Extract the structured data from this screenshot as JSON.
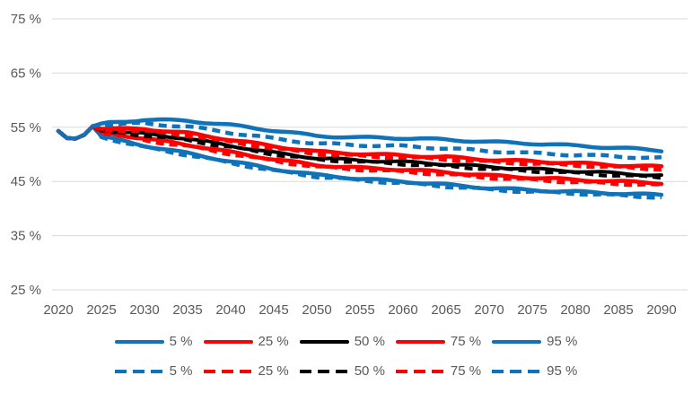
{
  "chart_data": {
    "type": "line",
    "title": "",
    "xlabel": "",
    "ylabel": "",
    "grid": true,
    "legend_position": "bottom",
    "xlim": [
      2020,
      2090
    ],
    "ylim": [
      25,
      75
    ],
    "x_ticks": [
      2020,
      2025,
      2030,
      2035,
      2040,
      2045,
      2050,
      2055,
      2060,
      2065,
      2070,
      2075,
      2080,
      2085,
      2090
    ],
    "y_ticks": [
      75,
      65,
      55,
      45,
      35,
      25
    ],
    "y_tick_labels": [
      "75 %",
      "65 %",
      "55 %",
      "45 %",
      "35 %",
      "25 %"
    ],
    "x": [
      2020,
      2021,
      2022,
      2023,
      2024,
      2025,
      2030,
      2035,
      2040,
      2045,
      2050,
      2055,
      2060,
      2065,
      2070,
      2075,
      2080,
      2085,
      2090
    ],
    "series": [
      {
        "name": "5 %",
        "style": "solid",
        "color": "#1072B8",
        "values": [
          54.3,
          53.0,
          52.9,
          53.6,
          55.2,
          53.3,
          51.6,
          50.2,
          48.7,
          47.3,
          46.2,
          45.5,
          45.0,
          44.4,
          43.8,
          43.4,
          43.1,
          42.8,
          42.5
        ]
      },
      {
        "name": "25 %",
        "style": "solid",
        "color": "#FF0000",
        "values": [
          54.3,
          53.0,
          52.9,
          53.6,
          55.2,
          54.1,
          52.9,
          51.8,
          50.4,
          49.1,
          48.0,
          47.5,
          47.2,
          46.7,
          46.1,
          45.7,
          45.3,
          45.0,
          44.7
        ]
      },
      {
        "name": "50 %",
        "style": "solid",
        "color": "#000000",
        "values": [
          54.3,
          53.0,
          52.9,
          53.6,
          55.2,
          54.4,
          53.8,
          52.9,
          51.6,
          50.3,
          49.3,
          48.9,
          48.6,
          48.2,
          47.7,
          47.3,
          46.9,
          46.5,
          46.1
        ]
      },
      {
        "name": "75 %",
        "style": "solid",
        "color": "#FF0000",
        "values": [
          54.3,
          53.0,
          52.9,
          53.6,
          55.2,
          54.7,
          54.7,
          53.9,
          52.7,
          51.5,
          50.5,
          50.1,
          49.8,
          49.5,
          49.0,
          48.7,
          48.4,
          48.0,
          47.7
        ]
      },
      {
        "name": "95 %",
        "style": "solid",
        "color": "#1072B8",
        "values": [
          54.3,
          53.0,
          52.9,
          53.6,
          55.2,
          55.7,
          56.4,
          56.2,
          55.4,
          54.4,
          53.4,
          53.1,
          53.0,
          52.7,
          52.3,
          52.0,
          51.6,
          51.2,
          50.7
        ]
      },
      {
        "name": "5 %",
        "style": "dashed",
        "color": "#1072B8",
        "values": [
          54.3,
          53.0,
          52.9,
          53.6,
          55.2,
          53.2,
          51.3,
          49.9,
          48.4,
          47.0,
          45.9,
          45.2,
          44.7,
          44.1,
          43.5,
          43.1,
          42.8,
          42.4,
          42.1
        ]
      },
      {
        "name": "25 %",
        "style": "dashed",
        "color": "#FF0000",
        "values": [
          54.3,
          53.0,
          52.9,
          53.6,
          55.2,
          54.0,
          52.6,
          51.5,
          50.1,
          48.8,
          47.7,
          47.2,
          46.8,
          46.3,
          45.7,
          45.3,
          44.9,
          44.6,
          44.3
        ]
      },
      {
        "name": "50 %",
        "style": "dashed",
        "color": "#000000",
        "values": [
          54.3,
          53.0,
          52.9,
          53.6,
          55.2,
          54.3,
          53.5,
          52.6,
          51.3,
          50.0,
          49.0,
          48.6,
          48.2,
          47.8,
          47.3,
          46.9,
          46.5,
          46.1,
          45.7
        ]
      },
      {
        "name": "75 %",
        "style": "dashed",
        "color": "#FF0000",
        "values": [
          54.3,
          53.0,
          52.9,
          53.6,
          55.2,
          54.5,
          54.3,
          53.5,
          52.3,
          51.1,
          50.1,
          49.7,
          49.4,
          49.1,
          48.6,
          48.3,
          48.0,
          47.6,
          47.3
        ]
      },
      {
        "name": "95 %",
        "style": "dashed",
        "color": "#1072B8",
        "values": [
          54.3,
          53.0,
          52.9,
          53.6,
          55.2,
          55.5,
          55.7,
          55.1,
          54.0,
          52.9,
          52.0,
          51.7,
          51.5,
          51.1,
          50.6,
          50.2,
          49.9,
          49.6,
          49.3
        ]
      }
    ],
    "colors": {
      "blue": "#1072B8",
      "red": "#FF0000",
      "black": "#000000",
      "grid": "#D9D9D9",
      "text": "#595959"
    }
  }
}
